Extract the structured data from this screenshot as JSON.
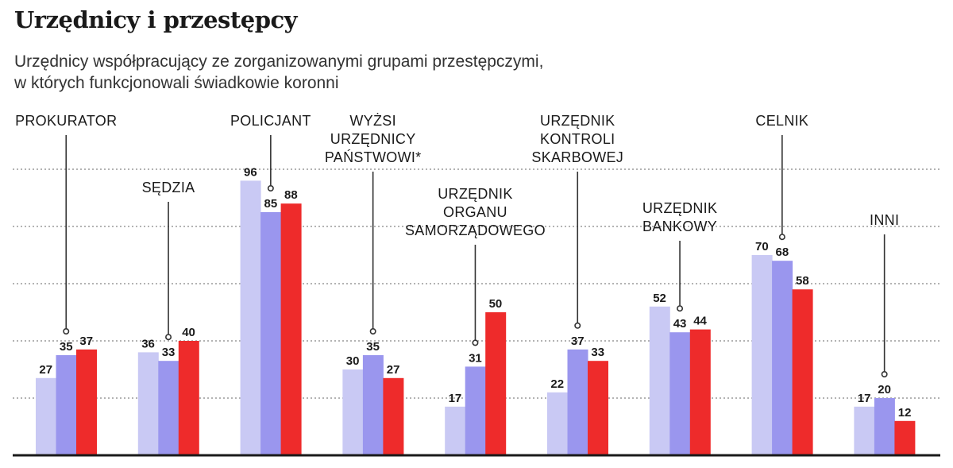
{
  "header": {
    "title": "Urzędnicy i przestępcy",
    "subtitle_lines": [
      "Urzędnicy współpracujący ze zorganizowanymi grupami przestępczymi,",
      "w których funkcjonowali świadkowie koronni"
    ]
  },
  "colors": {
    "series": [
      "#c9c9f4",
      "#9a96ee",
      "#ee2b2b"
    ],
    "grid": "#9a9a9a",
    "baseline": "#1a1a1a",
    "leader": "#333333"
  },
  "chart_data": {
    "type": "bar",
    "title": "Urzędnicy i przestępcy",
    "ylim": [
      0,
      100
    ],
    "grid": true,
    "legend": "none",
    "categories": [
      [
        "PROKURATOR"
      ],
      [
        "SĘDZIA"
      ],
      [
        "POLICJANT"
      ],
      [
        "WYŻSI",
        "URZĘDNICY",
        "PAŃSTWOWI*"
      ],
      [
        "URZĘDNIK",
        "ORGANU",
        "SAMORZĄDOWEGO"
      ],
      [
        "URZĘDNIK",
        "KONTROLI",
        "SKARBOWEJ"
      ],
      [
        "URZĘDNIK",
        "BANKOWY"
      ],
      [
        "CELNIK"
      ],
      [
        "INNI"
      ]
    ],
    "series": [
      {
        "values": [
          27,
          36,
          96,
          30,
          17,
          22,
          52,
          70,
          17
        ]
      },
      {
        "values": [
          35,
          33,
          85,
          35,
          31,
          37,
          43,
          68,
          20
        ]
      },
      {
        "values": [
          37,
          40,
          88,
          27,
          50,
          33,
          44,
          58,
          12
        ]
      }
    ]
  }
}
